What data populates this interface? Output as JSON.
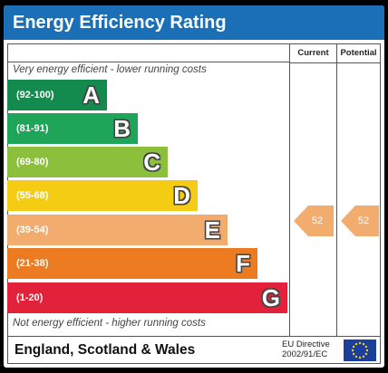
{
  "title": "Energy Efficiency Rating",
  "columns": {
    "current": "Current",
    "potential": "Potential"
  },
  "top_note": "Very energy efficient - lower running costs",
  "bottom_note": "Not energy efficient - higher running costs",
  "bands": [
    {
      "range": "(92-100)",
      "letter": "A",
      "color": "#138a4e"
    },
    {
      "range": "(81-91)",
      "letter": "B",
      "color": "#1ea55a"
    },
    {
      "range": "(69-80)",
      "letter": "C",
      "color": "#8bbf3c"
    },
    {
      "range": "(55-68)",
      "letter": "D",
      "color": "#f5cc14"
    },
    {
      "range": "(39-54)",
      "letter": "E",
      "color": "#f2ac6e"
    },
    {
      "range": "(21-38)",
      "letter": "F",
      "color": "#ec7b22"
    },
    {
      "range": "(1-20)",
      "letter": "G",
      "color": "#e1223a"
    }
  ],
  "current_rating": "52",
  "potential_rating": "52",
  "rating_arrow_color": "#f2ac6e",
  "footer": {
    "region": "England, Scotland & Wales",
    "directive_line1": "EU Directive",
    "directive_line2": "2002/91/EC"
  },
  "header_color": "#1a6fb7"
}
